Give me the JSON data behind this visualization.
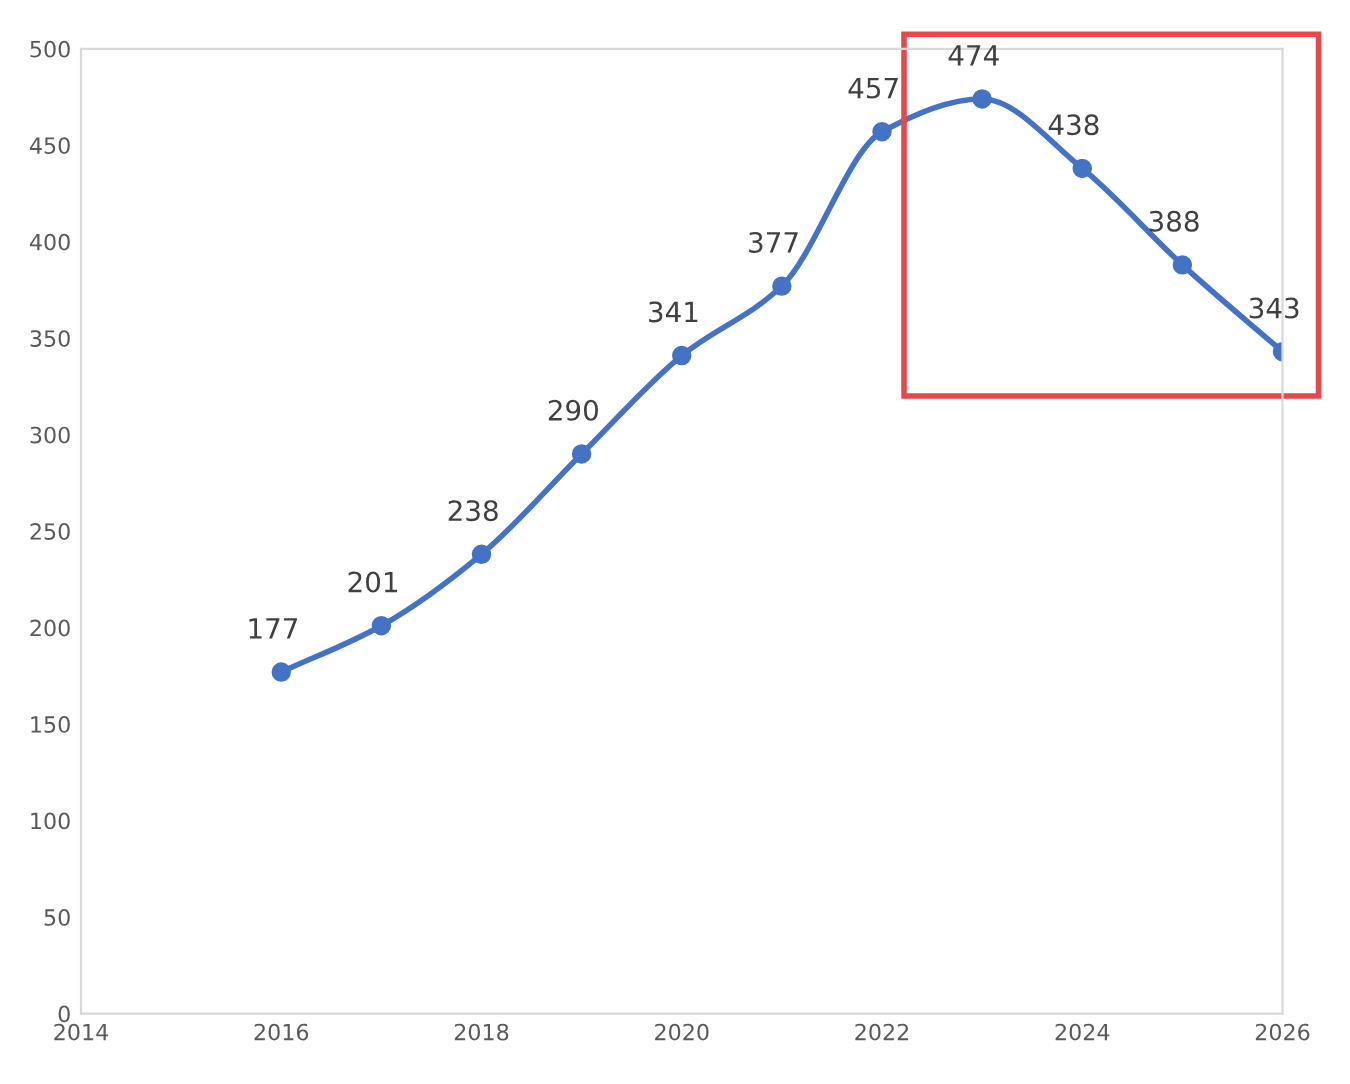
{
  "chart_data": {
    "type": "line",
    "x": [
      2016,
      2017,
      2018,
      2019,
      2020,
      2021,
      2022,
      2023,
      2024,
      2025,
      2026
    ],
    "series": [
      {
        "color": "#4472c4",
        "values": [
          177,
          201,
          238,
          290,
          341,
          377,
          457,
          474,
          438,
          388,
          343
        ]
      }
    ],
    "xlim": [
      2014,
      2026
    ],
    "xticks": [
      2014,
      2016,
      2018,
      2020,
      2022,
      2024,
      2026
    ],
    "ylim": [
      0,
      500
    ],
    "yticks": [
      0,
      50,
      100,
      150,
      200,
      250,
      300,
      350,
      400,
      450,
      500
    ],
    "marker": "circle",
    "line_style": "solid",
    "data_labels": true,
    "grid": false,
    "legend": false
  }
}
